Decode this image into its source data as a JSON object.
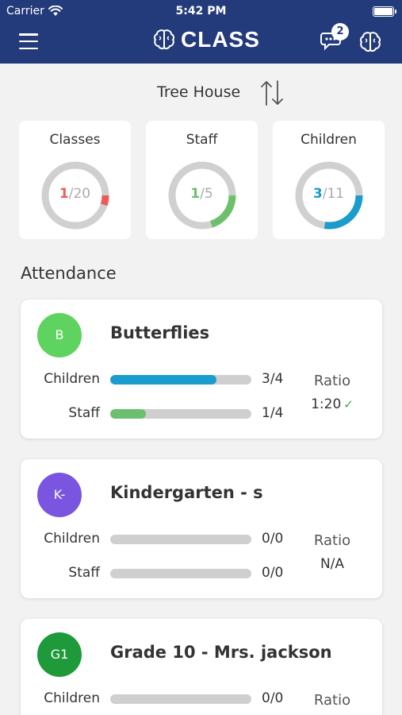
{
  "status_bar": {
    "carrier": "Carrier",
    "time": "5:42 PM"
  },
  "header": {
    "app_name": "CLASS",
    "notification_count": "2"
  },
  "location": {
    "name": "Tree House"
  },
  "stats": [
    {
      "label": "Classes",
      "value": "1",
      "total": "/20",
      "fraction": 0.05,
      "color": "#ee5a5a"
    },
    {
      "label": "Staff",
      "value": "1",
      "total": "/5",
      "fraction": 0.2,
      "color": "#6cbf6c"
    },
    {
      "label": "Children",
      "value": "3",
      "total": "/11",
      "fraction": 0.2727,
      "color": "#1a9ccc"
    }
  ],
  "attendance": {
    "title": "Attendance",
    "children_label": "Children",
    "staff_label": "Staff",
    "ratio_label": "Ratio",
    "classes": [
      {
        "initials": "B",
        "avatar_color": "#5fd35f",
        "name": "Butterflies",
        "children": "3/4",
        "children_fraction": 0.75,
        "staff": "1/4",
        "staff_fraction": 0.25,
        "ratio": "1:20",
        "ratio_ok": "✓"
      },
      {
        "initials": "K-",
        "avatar_color": "#7a55e0",
        "name": "Kindergarten - s",
        "children": "0/0",
        "children_fraction": 0,
        "staff": "0/0",
        "staff_fraction": 0,
        "ratio": "N/A",
        "ratio_ok": ""
      },
      {
        "initials": "G1",
        "avatar_color": "#1e9a3a",
        "name": "Grade 10 - Mrs. jackson",
        "children": "0/0",
        "children_fraction": 0,
        "staff": "",
        "staff_fraction": 0,
        "ratio": "",
        "ratio_ok": ""
      }
    ]
  },
  "colors": {
    "header_bg": "#233b7a",
    "children_bar": "#1a9ccc",
    "staff_bar": "#6cbf6c"
  }
}
